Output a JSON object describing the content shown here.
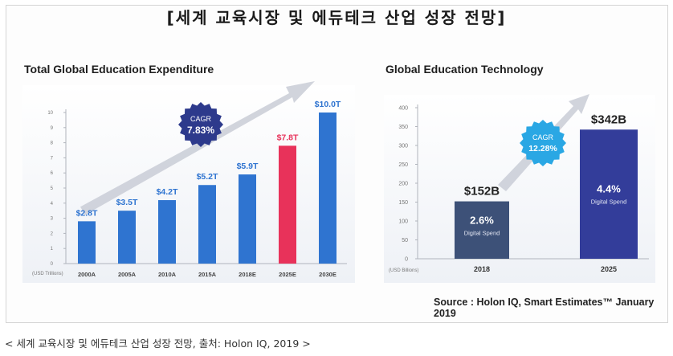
{
  "page": {
    "main_title": "[세계 교육시장 및 에듀테크 산업 성장 전망]",
    "caption": "< 세계 교육시장 및 에듀테크 산업 성장 전망, 출처: Holon IQ, 2019 >",
    "source": "Source : Holon IQ, Smart Estimates™ January 2019"
  },
  "chart_data": [
    {
      "type": "bar",
      "title": "Total Global Education Expenditure",
      "unit_label": "(USD Trillions)",
      "categories": [
        "2000A",
        "2005A",
        "2010A",
        "2015A",
        "2018E",
        "2025E",
        "2030E"
      ],
      "values": [
        2.8,
        3.5,
        4.2,
        5.2,
        5.9,
        7.8,
        10.0
      ],
      "value_labels": [
        "$2.8T",
        "$3.5T",
        "$4.2T",
        "$5.2T",
        "$5.9T",
        "$7.8T",
        "$10.0T"
      ],
      "highlight_index": 5,
      "ylim": [
        0,
        10
      ],
      "yticks": [
        0,
        1,
        2,
        3,
        4,
        5,
        6,
        7,
        8,
        9,
        10
      ],
      "grid": false,
      "colors": {
        "bar": "#2f74d0",
        "highlight": "#e8325a",
        "cagr_badge": "#2d3a8c",
        "arrow": "#c9cdd6"
      },
      "annotation": {
        "text": "CAGR",
        "value": "7.83%"
      }
    },
    {
      "type": "bar",
      "title": "Global Education Technology",
      "unit_label": "(USD Billions)",
      "categories": [
        "2018",
        "2025"
      ],
      "values": [
        152,
        342
      ],
      "value_labels": [
        "$152B",
        "$342B"
      ],
      "inner_labels": [
        {
          "value": "2.6%",
          "text": "Digital Spend"
        },
        {
          "value": "4.4%",
          "text": "Digital Spend"
        }
      ],
      "ylim": [
        0,
        400
      ],
      "yticks": [
        0,
        50,
        100,
        150,
        200,
        250,
        300,
        350,
        400
      ],
      "grid": false,
      "colors": {
        "bar_2018": "#3d5178",
        "bar_2025": "#333d9a",
        "cagr_badge": "#2aa7e4",
        "arrow": "#c9cdd6"
      },
      "annotation": {
        "text": "CAGR",
        "value": "12.28%"
      }
    }
  ]
}
